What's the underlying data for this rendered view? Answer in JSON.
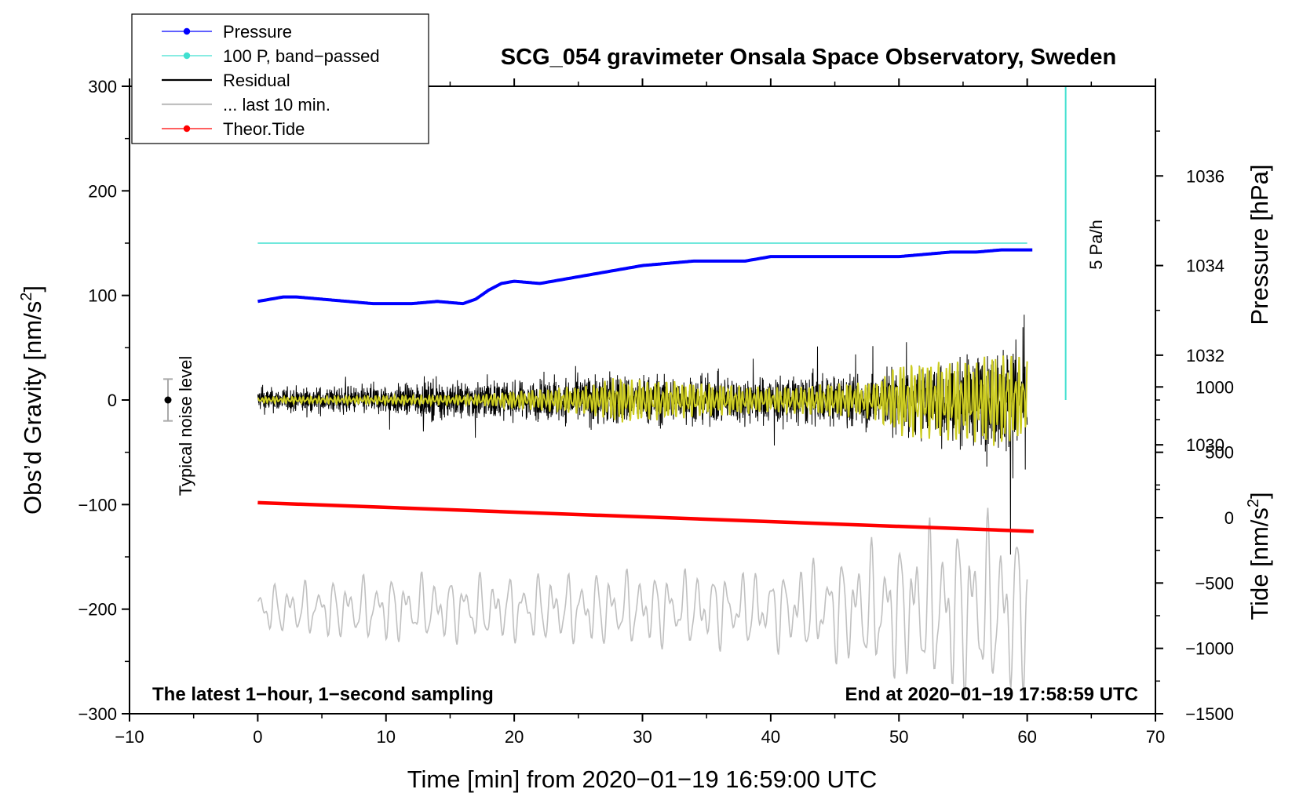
{
  "chart_data": {
    "type": "line",
    "title": "SCG_054 gravimeter Onsala Space Observatory, Sweden",
    "xlabel": "Time [min] from 2020−01−19 16:59:00 UTC",
    "ylabel_main": "Obs’d Gravity [nm/s",
    "ylabel_main_sup": "2",
    "ylabel_main_close": "]",
    "ylabel_pressure": "Pressure [hPa]",
    "ylabel_tide": "Tide [nm/s",
    "ylabel_tide_sup": "2",
    "ylabel_tide_close": "]",
    "xlim": [
      -10,
      70
    ],
    "ylim": [
      -300,
      300
    ],
    "pressure_lim": [
      1024,
      1038
    ],
    "tide_lim": [
      -1500,
      3300
    ],
    "x_ticks": [
      -10,
      0,
      10,
      20,
      30,
      40,
      50,
      60,
      70
    ],
    "x_tick_labels": [
      "−10",
      "0",
      "10",
      "20",
      "30",
      "40",
      "50",
      "60",
      "70"
    ],
    "y_ticks": [
      -300,
      -200,
      -100,
      0,
      100,
      200,
      300
    ],
    "y_tick_labels": [
      "−300",
      "−200",
      "−100",
      "0",
      "100",
      "200",
      "300"
    ],
    "pressure_ticks": [
      1030,
      1032,
      1034,
      1036
    ],
    "pressure_tick_labels": [
      "1030",
      "1032",
      "1034",
      "1036"
    ],
    "tide_ticks": [
      -1500,
      -1000,
      -500,
      0,
      500,
      1000
    ],
    "tide_tick_labels": [
      "−1500",
      "−1000",
      "−500",
      "0",
      "500",
      "1000"
    ],
    "legend": [
      {
        "label": "Pressure",
        "color": "#0000ff",
        "marker": true
      },
      {
        "label": "100 P, band−passed",
        "color": "#40e0d0",
        "marker": true
      },
      {
        "label": "Residual",
        "color": "#000000",
        "marker": false
      },
      {
        "label": "... last 10 min.",
        "color": "#c0c0c0",
        "marker": false
      },
      {
        "label": "Theor.Tide",
        "color": "#ff0000",
        "marker": true
      }
    ],
    "legend_position": "top-left",
    "annotations": {
      "noise_label": "Typical noise level",
      "noise_value": 0,
      "noise_range": [
        -20,
        20
      ],
      "noise_x": -7,
      "rate_label": "5 Pa/h",
      "rate_bar_x": 63,
      "rate_bar_y_range": [
        0,
        300
      ],
      "bottom_left": "The latest 1−hour, 1−second sampling",
      "bottom_right": "End at 2020−01−19 17:58:59 UTC"
    },
    "series": [
      {
        "name": "Pressure",
        "color": "#0000ff",
        "axis": "pressure_hPa",
        "x": [
          0,
          2,
          3,
          5,
          7,
          9,
          12,
          14,
          16,
          17,
          18,
          19,
          20,
          22,
          24,
          26,
          28,
          30,
          32,
          34,
          36,
          38,
          40,
          42,
          44,
          46,
          48,
          50,
          52,
          54,
          56,
          58,
          60.5
        ],
        "values": [
          1033.2,
          1033.3,
          1033.3,
          1033.25,
          1033.2,
          1033.15,
          1033.15,
          1033.2,
          1033.15,
          1033.25,
          1033.45,
          1033.6,
          1033.65,
          1033.6,
          1033.7,
          1033.8,
          1033.9,
          1034.0,
          1034.05,
          1034.1,
          1034.1,
          1034.1,
          1034.2,
          1034.2,
          1034.2,
          1034.2,
          1034.2,
          1034.2,
          1034.25,
          1034.3,
          1034.3,
          1034.35,
          1034.35
        ]
      },
      {
        "name": "100 P, band−passed",
        "color": "#40e0d0",
        "axis": "gravity_offset",
        "x": [
          0,
          60
        ],
        "values": [
          150,
          150
        ]
      },
      {
        "name": "Residual",
        "color": "#000000",
        "axis": "gravity",
        "x": [
          0,
          60
        ],
        "envelope_x": [
          0,
          10,
          17,
          20,
          27,
          33,
          40,
          47,
          50,
          55,
          57,
          58,
          59,
          60
        ],
        "envelope_amp": [
          20,
          25,
          35,
          30,
          45,
          40,
          40,
          45,
          55,
          70,
          80,
          90,
          100,
          95
        ]
      },
      {
        "name": "Filtered residual",
        "color": "#cccc22",
        "axis": "gravity",
        "x": [
          0,
          60
        ],
        "envelope_x": [
          0,
          17,
          26,
          28,
          40,
          48,
          50,
          55,
          58,
          60
        ],
        "envelope_amp": [
          3,
          5,
          15,
          22,
          12,
          18,
          35,
          40,
          45,
          40
        ]
      },
      {
        "name": "... last 10 min.",
        "color": "#c0c0c0",
        "axis": "gravity_offset",
        "x": [
          0,
          60
        ],
        "center": -200,
        "envelope_x": [
          0,
          10,
          20,
          30,
          40,
          45,
          50,
          55,
          60
        ],
        "envelope_amp": [
          25,
          35,
          35,
          40,
          40,
          55,
          75,
          95,
          90
        ]
      },
      {
        "name": "Theor.Tide",
        "color": "#ff0000",
        "axis": "tide_nm_s2",
        "x": [
          0,
          60.5
        ],
        "values": [
          115,
          -105
        ]
      }
    ]
  }
}
